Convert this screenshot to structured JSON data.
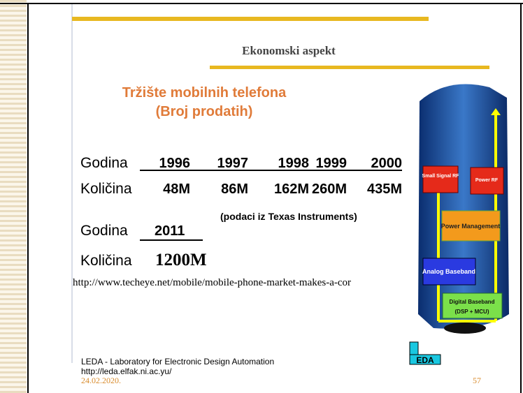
{
  "slide": {
    "title": "Ekonomski  aspekt",
    "subtitle": [
      "Tržište mobilnih telefona",
      "(Broj prodatih)"
    ],
    "table": {
      "rows": [
        [
          "Godina",
          "1996",
          "1997",
          "1998",
          "1999",
          "2000"
        ],
        [
          "Količina",
          "48M",
          "86M",
          "162M",
          "260M",
          "435M"
        ]
      ]
    },
    "source_note": "(podaci iz Texas Instruments)",
    "update": {
      "year_label": "Godina",
      "year": "2011",
      "amount_label": "Količina",
      "amount": "1200M"
    },
    "url": "http://www.techeye.net/mobile/mobile-phone-market-makes-a-cor",
    "phone_blocks": [
      "Small Signal RF",
      "Power RF",
      "Power Management",
      "Analog Baseband",
      "Digital Baseband",
      "(DSP + MCU)"
    ],
    "footer": {
      "lab": "LEDA - Laboratory for Electronic Design Automation",
      "site": "http://leda.elfak.ni.ac.yu/",
      "date": "24.02.2020.",
      "page": "57",
      "logo": "EDA"
    }
  }
}
